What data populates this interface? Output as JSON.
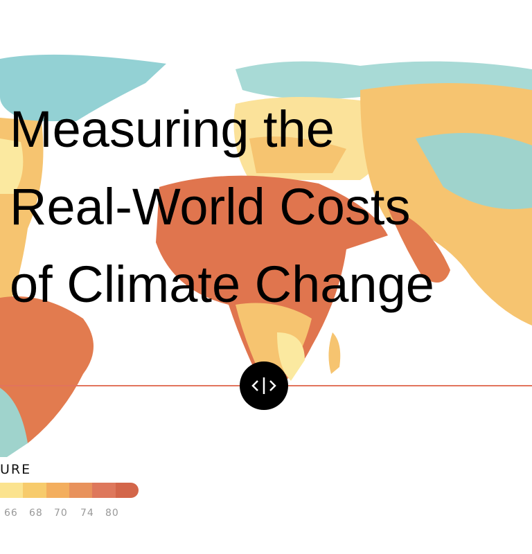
{
  "title": {
    "lines": [
      "Measuring the",
      "Real-World Costs",
      "of Climate Change"
    ]
  },
  "legend": {
    "title": "URE",
    "colors": [
      "#fbe38f",
      "#f7cb6c",
      "#f3ae5e",
      "#e8925c",
      "#de785c",
      "#d3664a"
    ],
    "ticks": [
      "66",
      "68",
      "70",
      "74",
      "80"
    ]
  },
  "slider": {
    "icon": "chevron-left-right-icon",
    "line_color": "#e2735c"
  },
  "map": {
    "colors": {
      "cold": "#8fd0d3",
      "cool": "#c8e7d6",
      "mild": "#fbe9a0",
      "warm": "#f5b865",
      "hot": "#e0754e"
    }
  }
}
